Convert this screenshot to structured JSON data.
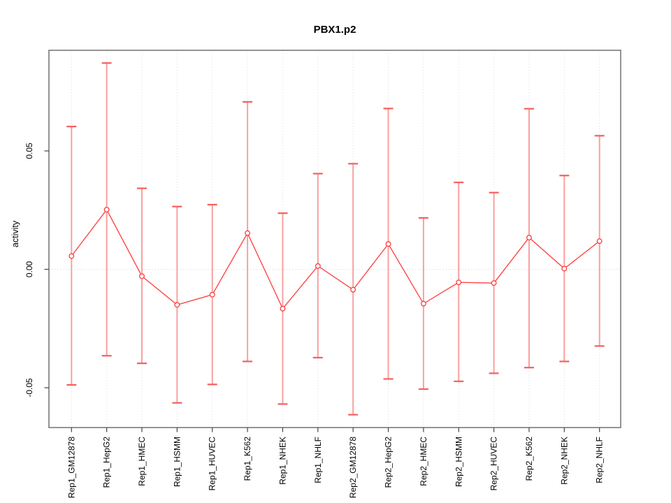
{
  "figure": {
    "title": "PBX1.p2",
    "ylabel": "activity"
  },
  "chart_data": {
    "type": "line",
    "title": "PBX1.p2",
    "xlabel": "",
    "ylabel": "activity",
    "legend": "none",
    "grid": "dotted vertical line at every category; dotted horizontal line at y=0",
    "marker": "open-circle with vertical error bars capped top and bottom",
    "categories": [
      "Rep1_GM12878",
      "Rep1_HepG2",
      "Rep1_HMEC",
      "Rep1_HSMM",
      "Rep1_HUVEC",
      "Rep1_K562",
      "Rep1_NHEK",
      "Rep1_NHLF",
      "Rep2_GM12878",
      "Rep2_HepG2",
      "Rep2_HMEC",
      "Rep2_HSMM",
      "Rep2_HUVEC",
      "Rep2_K562",
      "Rep2_NHEK",
      "Rep2_NHLF"
    ],
    "series": [
      {
        "name": "activity",
        "values": [
          0.0056,
          0.0252,
          -0.0029,
          -0.015,
          -0.0107,
          0.0153,
          -0.0166,
          0.0014,
          -0.0086,
          0.0107,
          -0.0145,
          -0.0055,
          -0.0058,
          0.0134,
          0.0003,
          0.0119
        ],
        "upper": [
          0.0603,
          0.0871,
          0.0342,
          0.0265,
          0.0273,
          0.0707,
          0.0237,
          0.0404,
          0.0446,
          0.0679,
          0.0217,
          0.0367,
          0.0324,
          0.0678,
          0.0396,
          0.0564
        ],
        "lower": [
          -0.0488,
          -0.0365,
          -0.0397,
          -0.0564,
          -0.0486,
          -0.0389,
          -0.0569,
          -0.0373,
          -0.0614,
          -0.0463,
          -0.0506,
          -0.0473,
          -0.0439,
          -0.0415,
          -0.0389,
          -0.0324
        ]
      }
    ],
    "yticks": [
      0.05,
      0.0,
      -0.05
    ],
    "ytick_labels": [
      "0.05",
      "0.00",
      "-0.05"
    ],
    "ylim": [
      -0.067,
      0.093
    ],
    "colors": {
      "point": "#ff3b3b",
      "line": "#ff3b3b",
      "errorbar_line": "#f9a0a0",
      "errorbar_cap": "#f55f5f",
      "grid": "#dedede",
      "zero_line": "#d4d4d4",
      "box": "#7a7a7a",
      "tick": "#444444",
      "text": "#000000"
    }
  }
}
